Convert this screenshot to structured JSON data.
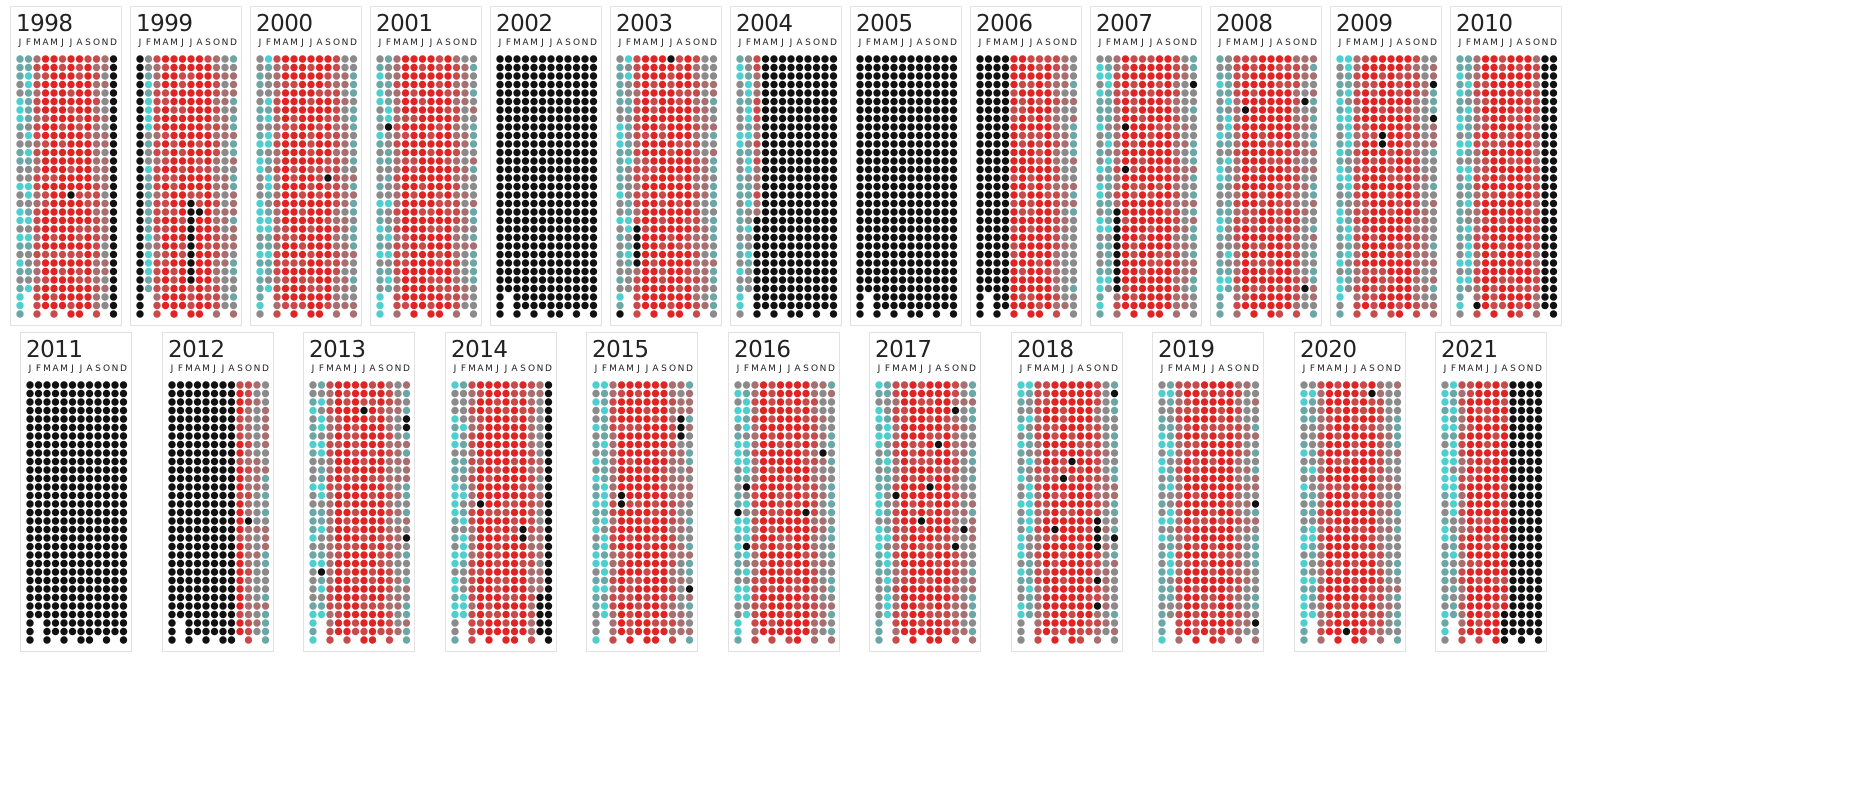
{
  "chart_data": {
    "type": "heatmap",
    "rows_per_month": 31,
    "months": [
      "J",
      "F",
      "M",
      "A",
      "M",
      "J",
      "J",
      "A",
      "S",
      "O",
      "N",
      "D"
    ],
    "colors": {
      "black": "#111111",
      "red": "#e02323",
      "red_muted": "#c94a4a",
      "mauve": "#a86f70",
      "gray": "#8b8b8b",
      "teal_gray": "#6aa7a6",
      "teal": "#4dcfcf"
    },
    "panels": [
      {
        "year": "1998",
        "pattern": "normal",
        "black_cols": [
          11
        ],
        "black_rows": [],
        "black_points": [
          [
            6,
            16
          ]
        ]
      },
      {
        "year": "1999",
        "pattern": "normal",
        "black_cols": [
          0
        ],
        "black_rows": [],
        "black_points": [
          [
            6,
            17
          ],
          [
            6,
            18
          ],
          [
            6,
            19
          ],
          [
            6,
            20
          ],
          [
            6,
            21
          ],
          [
            6,
            22
          ],
          [
            6,
            23
          ],
          [
            6,
            24
          ],
          [
            6,
            25
          ],
          [
            6,
            26
          ],
          [
            7,
            18
          ]
        ]
      },
      {
        "year": "2000",
        "pattern": "normal",
        "black_cols": [],
        "black_rows": [],
        "black_points": [
          [
            8,
            14
          ]
        ]
      },
      {
        "year": "2001",
        "pattern": "normal",
        "black_cols": [],
        "black_rows": [],
        "black_points": [
          [
            1,
            8
          ]
        ]
      },
      {
        "year": "2002",
        "pattern": "all_black",
        "black_cols": [],
        "black_rows": [],
        "black_points": []
      },
      {
        "year": "2003",
        "pattern": "normal",
        "black_cols": [],
        "black_rows": [],
        "black_points": [
          [
            6,
            0
          ],
          [
            2,
            20
          ],
          [
            2,
            21
          ],
          [
            2,
            22
          ],
          [
            2,
            23
          ],
          [
            2,
            24
          ],
          [
            0,
            30
          ]
        ]
      },
      {
        "year": "2004",
        "pattern": "normal",
        "black_cols": [
          3,
          4,
          5,
          6,
          7,
          8,
          9,
          10,
          11
        ],
        "black_rows": [],
        "black_points": [
          [
            2,
            19
          ],
          [
            2,
            20
          ],
          [
            2,
            21
          ],
          [
            2,
            22
          ],
          [
            2,
            23
          ],
          [
            2,
            24
          ],
          [
            2,
            25
          ],
          [
            2,
            26
          ],
          [
            2,
            27
          ],
          [
            2,
            28
          ],
          [
            2,
            29
          ],
          [
            2,
            30
          ]
        ]
      },
      {
        "year": "2005",
        "pattern": "all_black",
        "black_cols": [],
        "black_rows": [],
        "black_points": []
      },
      {
        "year": "2006",
        "pattern": "normal",
        "black_cols": [
          0,
          1,
          2,
          3
        ],
        "black_rows": [],
        "black_points": []
      },
      {
        "year": "2007",
        "pattern": "normal",
        "black_cols": [],
        "black_rows": [],
        "black_points": [
          [
            11,
            3
          ],
          [
            3,
            8
          ],
          [
            3,
            13
          ],
          [
            2,
            18
          ],
          [
            2,
            19
          ],
          [
            2,
            20
          ],
          [
            2,
            21
          ],
          [
            2,
            22
          ],
          [
            2,
            23
          ],
          [
            2,
            24
          ],
          [
            2,
            25
          ],
          [
            2,
            26
          ],
          [
            2,
            27
          ]
        ]
      },
      {
        "year": "2008",
        "pattern": "normal",
        "black_cols": [],
        "black_rows": [],
        "black_points": [
          [
            3,
            6
          ],
          [
            10,
            5
          ],
          [
            10,
            27
          ]
        ]
      },
      {
        "year": "2009",
        "pattern": "normal",
        "black_cols": [],
        "black_rows": [],
        "black_points": [
          [
            11,
            3
          ],
          [
            5,
            9
          ],
          [
            5,
            10
          ],
          [
            11,
            7
          ]
        ]
      },
      {
        "year": "2010",
        "pattern": "normal",
        "black_cols": [
          10,
          11
        ],
        "black_rows": [],
        "black_points": [
          [
            2,
            29
          ]
        ]
      },
      {
        "year": "2011",
        "pattern": "all_black",
        "black_cols": [],
        "black_rows": [],
        "black_points": []
      },
      {
        "year": "2012",
        "pattern": "normal",
        "black_cols": [
          0,
          1,
          2,
          3,
          4,
          5,
          6,
          7
        ],
        "black_rows": [],
        "black_points": [
          [
            9,
            16
          ],
          [
            10,
            30
          ]
        ]
      },
      {
        "year": "2013",
        "pattern": "normal",
        "black_cols": [],
        "black_rows": [],
        "black_points": [
          [
            6,
            3
          ],
          [
            11,
            4
          ],
          [
            11,
            5
          ],
          [
            11,
            18
          ],
          [
            1,
            22
          ]
        ]
      },
      {
        "year": "2014",
        "pattern": "normal",
        "black_cols": [
          11
        ],
        "black_rows": [],
        "black_points": [
          [
            3,
            14
          ],
          [
            8,
            17
          ],
          [
            8,
            18
          ],
          [
            10,
            25
          ],
          [
            10,
            26
          ],
          [
            10,
            27
          ],
          [
            10,
            28
          ],
          [
            10,
            29
          ],
          [
            10,
            30
          ]
        ]
      },
      {
        "year": "2015",
        "pattern": "normal",
        "black_cols": [],
        "black_rows": [],
        "black_points": [
          [
            10,
            4
          ],
          [
            10,
            5
          ],
          [
            10,
            6
          ],
          [
            3,
            13
          ],
          [
            3,
            14
          ],
          [
            11,
            24
          ]
        ]
      },
      {
        "year": "2016",
        "pattern": "normal",
        "black_cols": [],
        "black_rows": [],
        "black_points": [
          [
            10,
            8
          ],
          [
            1,
            12
          ],
          [
            0,
            15
          ],
          [
            8,
            15
          ],
          [
            1,
            19
          ]
        ]
      },
      {
        "year": "2017",
        "pattern": "normal",
        "black_cols": [],
        "black_rows": [],
        "black_points": [
          [
            9,
            3
          ],
          [
            7,
            7
          ],
          [
            6,
            12
          ],
          [
            2,
            13
          ],
          [
            5,
            16
          ],
          [
            10,
            17
          ],
          [
            9,
            19
          ]
        ]
      },
      {
        "year": "2018",
        "pattern": "normal",
        "black_cols": [],
        "black_rows": [],
        "black_points": [
          [
            11,
            1
          ],
          [
            6,
            9
          ],
          [
            5,
            11
          ],
          [
            4,
            17
          ],
          [
            9,
            16
          ],
          [
            9,
            17
          ],
          [
            9,
            18
          ],
          [
            11,
            18
          ],
          [
            9,
            19
          ],
          [
            9,
            23
          ],
          [
            9,
            26
          ]
        ]
      },
      {
        "year": "2019",
        "pattern": "normal",
        "black_cols": [],
        "black_rows": [],
        "black_points": [
          [
            11,
            14
          ],
          [
            11,
            28
          ]
        ]
      },
      {
        "year": "2020",
        "pattern": "normal",
        "black_cols": [],
        "black_rows": [],
        "black_points": [
          [
            8,
            1
          ],
          [
            5,
            29
          ]
        ]
      },
      {
        "year": "2021",
        "pattern": "normal",
        "black_cols": [
          8,
          9,
          10,
          11
        ],
        "black_rows": [],
        "black_points": [
          [
            7,
            27
          ],
          [
            7,
            28
          ],
          [
            7,
            29
          ],
          [
            7,
            30
          ]
        ]
      }
    ]
  }
}
